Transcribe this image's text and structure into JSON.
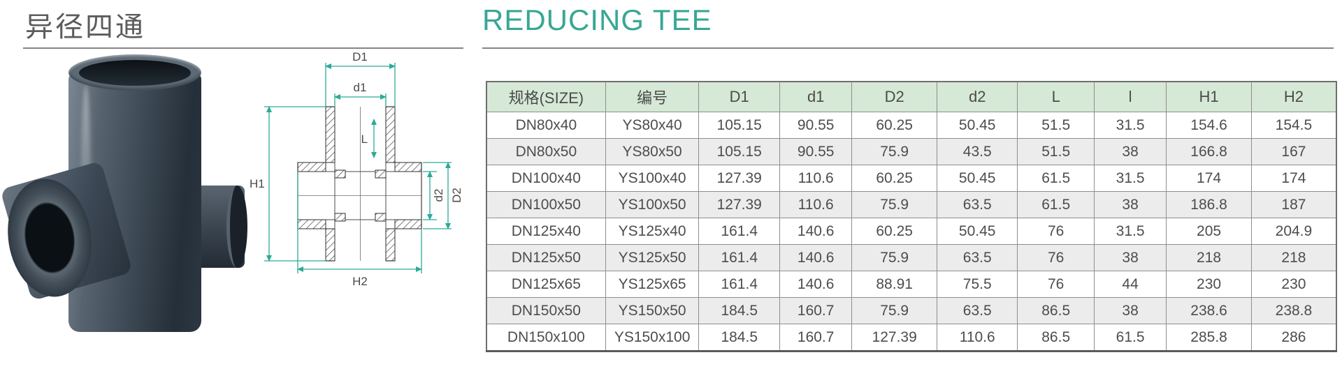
{
  "header": {
    "title_zh": "异径四通",
    "title_en": "REDUCING TEE",
    "accent_color": "#38a795",
    "rule_color": "#858585"
  },
  "drawing": {
    "line_color": "#2bab97",
    "labels": {
      "D1": "D1",
      "d1": "d1",
      "L": "L",
      "H1": "H1",
      "d2": "d2",
      "D2": "D2",
      "H2": "H2"
    }
  },
  "table": {
    "header_bg": "#d6e8d6",
    "alt_row_bg": "#ececec",
    "border_color": "#8e8e8e",
    "columns": [
      "规格(SIZE)",
      "编号",
      "D1",
      "d1",
      "D2",
      "d2",
      "L",
      "l",
      "H1",
      "H2"
    ],
    "rows": [
      [
        "DN80x40",
        "YS80x40",
        "105.15",
        "90.55",
        "60.25",
        "50.45",
        "51.5",
        "31.5",
        "154.6",
        "154.5"
      ],
      [
        "DN80x50",
        "YS80x50",
        "105.15",
        "90.55",
        "75.9",
        "43.5",
        "51.5",
        "38",
        "166.8",
        "167"
      ],
      [
        "DN100x40",
        "YS100x40",
        "127.39",
        "110.6",
        "60.25",
        "50.45",
        "61.5",
        "31.5",
        "174",
        "174"
      ],
      [
        "DN100x50",
        "YS100x50",
        "127.39",
        "110.6",
        "75.9",
        "63.5",
        "61.5",
        "38",
        "186.8",
        "187"
      ],
      [
        "DN125x40",
        "YS125x40",
        "161.4",
        "140.6",
        "60.25",
        "50.45",
        "76",
        "31.5",
        "205",
        "204.9"
      ],
      [
        "DN125x50",
        "YS125x50",
        "161.4",
        "140.6",
        "75.9",
        "63.5",
        "76",
        "38",
        "218",
        "218"
      ],
      [
        "DN125x65",
        "YS125x65",
        "161.4",
        "140.6",
        "88.91",
        "75.5",
        "76",
        "44",
        "230",
        "230"
      ],
      [
        "DN150x50",
        "YS150x50",
        "184.5",
        "160.7",
        "75.9",
        "63.5",
        "86.5",
        "38",
        "238.6",
        "238.8"
      ],
      [
        "DN150x100",
        "YS150x100",
        "184.5",
        "160.7",
        "127.39",
        "110.6",
        "86.5",
        "61.5",
        "285.8",
        "286"
      ]
    ]
  }
}
